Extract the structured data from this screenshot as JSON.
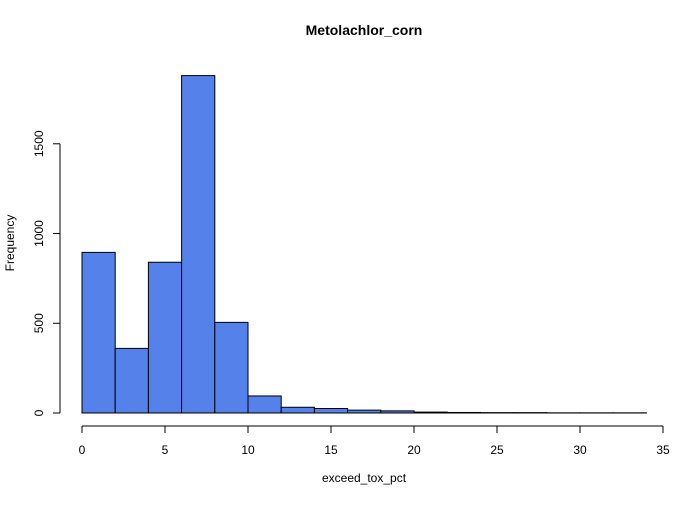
{
  "chart_data": {
    "type": "bar",
    "title": "Metolachlor_corn",
    "xlabel": "exceed_tox_pct",
    "ylabel": "Frequency",
    "bin_width": 2,
    "bins": [
      {
        "start": 0,
        "end": 2,
        "count": 895
      },
      {
        "start": 2,
        "end": 4,
        "count": 360
      },
      {
        "start": 4,
        "end": 6,
        "count": 840
      },
      {
        "start": 6,
        "end": 8,
        "count": 1880
      },
      {
        "start": 8,
        "end": 10,
        "count": 505
      },
      {
        "start": 10,
        "end": 12,
        "count": 95
      },
      {
        "start": 12,
        "end": 14,
        "count": 32
      },
      {
        "start": 14,
        "end": 16,
        "count": 25
      },
      {
        "start": 16,
        "end": 18,
        "count": 16
      },
      {
        "start": 18,
        "end": 20,
        "count": 12
      },
      {
        "start": 20,
        "end": 22,
        "count": 5
      },
      {
        "start": 22,
        "end": 24,
        "count": 3
      },
      {
        "start": 24,
        "end": 26,
        "count": 2
      },
      {
        "start": 26,
        "end": 28,
        "count": 2
      },
      {
        "start": 28,
        "end": 30,
        "count": 1
      },
      {
        "start": 30,
        "end": 32,
        "count": 1
      },
      {
        "start": 32,
        "end": 34,
        "count": 1
      }
    ],
    "xlim": [
      0,
      35
    ],
    "ylim": [
      0,
      1900
    ],
    "x_ticks": [
      0,
      5,
      10,
      15,
      20,
      25,
      30,
      35
    ],
    "y_ticks": [
      0,
      500,
      1000,
      1500
    ],
    "grid": false,
    "legend": "none",
    "bar_color": "#5581EA",
    "bar_edge_color": "#000000"
  }
}
